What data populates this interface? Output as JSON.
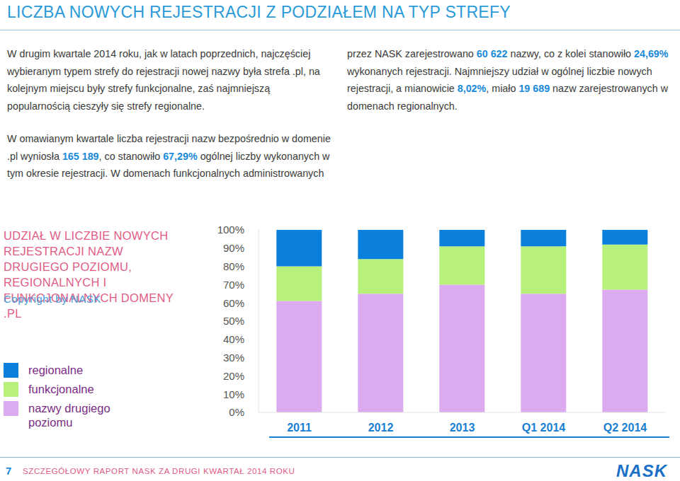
{
  "header": {
    "title": "LICZBA NOWYCH REJESTRACJI Z PODZIAŁEM NA TYP STREFY"
  },
  "text": {
    "paragraphs": [
      [
        "W drugim kwartale 2014 roku, jak w latach poprzednich, najczęściej wybieranym typem strefy do rejestracji nowej nazwy była strefa .pl, na kolejnym miejscu były strefy funkcjonalne, zaś najmniejszą popularnością cieszyły się strefy regionalne."
      ],
      [
        "W omawianym kwartale liczba rejestracji nazw bezpośrednio w domenie .pl wyniosła ",
        "165 189",
        ", co stanowiło ",
        "67,29%",
        " ogólnej liczby wykonanych w tym okresie rejestracji. W domenach funkcjonalnych administrowanych przez NASK zarejestrowano ",
        "60 622",
        " nazwy, co z kolei stanowiło ",
        "24,69%",
        " wykonanych rejestracji. Najmniejszy udział w ogólnej liczbie nowych rejestracji, a mianowicie ",
        "8,02%",
        ", miało ",
        "19 689",
        " nazw zarejestrowanych w domenach regionalnych."
      ]
    ]
  },
  "chart_data": {
    "type": "bar",
    "stacked": true,
    "title": "UDZIAŁ W LICZBIE NOWYCH REJESTRACJI NAZW DRUGIEGO POZIOMU, REGIONALNYCH I FUNKCJONALNYCH DOMENY .PL",
    "subtitle": "Copyright by NASK",
    "categories": [
      "2011",
      "2012",
      "2013",
      "Q1 2014",
      "Q2 2014"
    ],
    "series": [
      {
        "name": "regionalne",
        "color": "#0a7fdc",
        "values": [
          20,
          16,
          9,
          9,
          8.02
        ]
      },
      {
        "name": "funkcjonalne",
        "color": "#b8f07c",
        "values": [
          19,
          19,
          21,
          26,
          24.69
        ]
      },
      {
        "name": "nazwy drugiego poziomu",
        "color": "#dcaaee",
        "values": [
          61,
          65,
          70,
          65,
          67.29
        ]
      }
    ],
    "ylim": [
      0,
      100
    ],
    "yticks": [
      {
        "value": 0,
        "label": "0%"
      },
      {
        "value": 10,
        "label": "10%"
      },
      {
        "value": 20,
        "label": "20%"
      },
      {
        "value": 30,
        "label": "30%"
      },
      {
        "value": 40,
        "label": "40%"
      },
      {
        "value": 50,
        "label": "50%"
      },
      {
        "value": 60,
        "label": "60%"
      },
      {
        "value": 70,
        "label": "70%"
      },
      {
        "value": 80,
        "label": "80%"
      },
      {
        "value": 90,
        "label": "90%"
      },
      {
        "value": 100,
        "label": "100%"
      }
    ],
    "grid": false,
    "legend": "left"
  },
  "footer": {
    "page": 7,
    "text": "SZCZEGÓŁOWY RAPORT NASK ZA DRUGI KWARTAŁ 2014 ROKU",
    "logo": "NASK"
  }
}
